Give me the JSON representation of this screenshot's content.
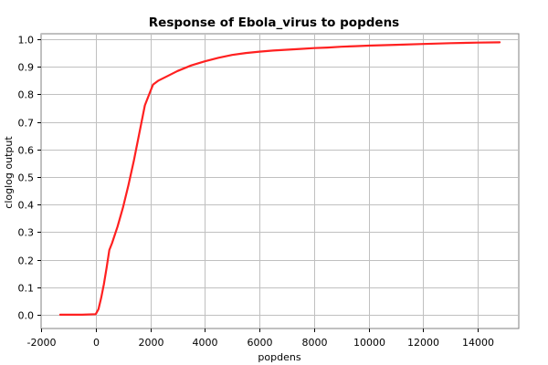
{
  "chart_data": {
    "type": "line",
    "title": "Response of Ebola_virus to popdens",
    "xlabel": "popdens",
    "ylabel": "cloglog output",
    "xlim": [
      -2000,
      15500
    ],
    "ylim": [
      -0.05,
      1.02
    ],
    "x_ticks": [
      -2000,
      0,
      2000,
      4000,
      6000,
      8000,
      10000,
      12000,
      14000
    ],
    "y_ticks": [
      0.0,
      0.1,
      0.2,
      0.3,
      0.4,
      0.5,
      0.6,
      0.7,
      0.8,
      0.9,
      1.0
    ],
    "x_tick_labels": [
      "-2000",
      "0",
      "2000",
      "4000",
      "6000",
      "8000",
      "10000",
      "12000",
      "14000"
    ],
    "y_tick_labels": [
      "0.0",
      "0.1",
      "0.2",
      "0.3",
      "0.4",
      "0.5",
      "0.6",
      "0.7",
      "0.8",
      "0.9",
      "1.0"
    ],
    "grid": true,
    "series": [
      {
        "color": "#ff2020",
        "x": [
          -1300,
          -500,
          0,
          100,
          200,
          300,
          400,
          500,
          600,
          800,
          1000,
          1200,
          1400,
          1600,
          1800,
          2000,
          2100,
          2300,
          2600,
          3000,
          3500,
          4000,
          4500,
          5000,
          5500,
          6000,
          6500,
          7000,
          7500,
          8000,
          8500,
          9000,
          9500,
          10000,
          11000,
          12000,
          13000,
          14000,
          14800
        ],
        "y": [
          0.0,
          0.0,
          0.002,
          0.02,
          0.06,
          0.11,
          0.17,
          0.235,
          0.26,
          0.32,
          0.39,
          0.47,
          0.56,
          0.66,
          0.76,
          0.81,
          0.835,
          0.85,
          0.865,
          0.885,
          0.905,
          0.92,
          0.933,
          0.943,
          0.95,
          0.955,
          0.959,
          0.962,
          0.965,
          0.968,
          0.97,
          0.973,
          0.975,
          0.977,
          0.98,
          0.983,
          0.986,
          0.988,
          0.989
        ]
      }
    ]
  }
}
